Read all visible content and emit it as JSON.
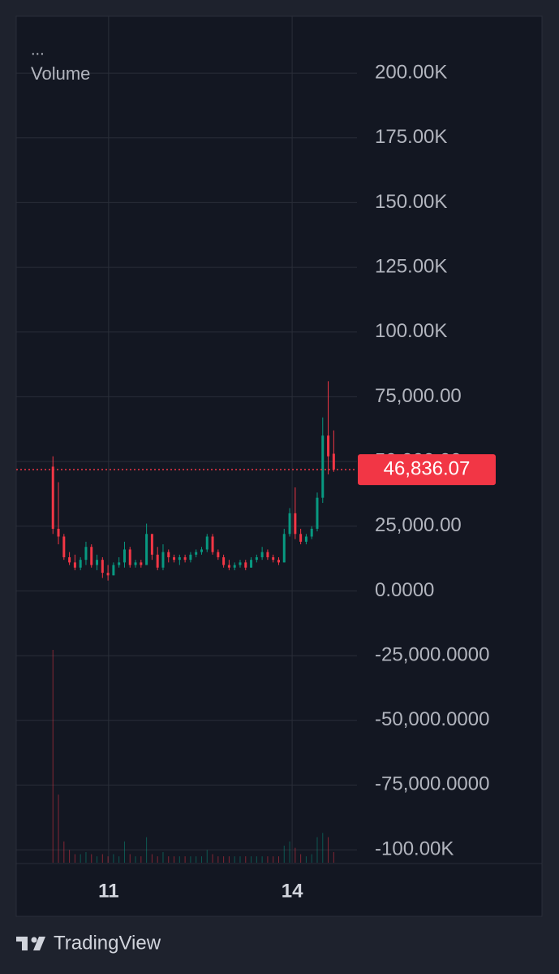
{
  "chart_data": {
    "type": "candlestick",
    "pane_menu": "...",
    "pane_title": "Volume",
    "x": [
      10.09,
      10.18,
      10.27,
      10.36,
      10.45,
      10.54,
      10.63,
      10.72,
      10.81,
      10.9,
      10.99,
      11.08,
      11.17,
      11.26,
      11.35,
      11.44,
      11.53,
      11.62,
      11.71,
      11.8,
      11.89,
      11.98,
      12.07,
      12.16,
      12.25,
      12.34,
      12.43,
      12.52,
      12.61,
      12.7,
      12.79,
      12.88,
      12.97,
      13.06,
      13.15,
      13.24,
      13.33,
      13.42,
      13.51,
      13.6,
      13.69,
      13.78,
      13.87,
      13.96,
      14.05,
      14.14,
      14.23,
      14.32,
      14.41,
      14.5,
      14.59,
      14.68
    ],
    "open": [
      48000,
      24000,
      21000,
      13000,
      11000,
      9000,
      12000,
      17000,
      10000,
      12000,
      7000,
      6000,
      10000,
      11000,
      16000,
      10000,
      11000,
      10000,
      22000,
      14000,
      9000,
      15000,
      13000,
      12000,
      13000,
      12000,
      14000,
      15000,
      16000,
      21000,
      15000,
      13000,
      10000,
      9000,
      10000,
      11000,
      9000,
      12000,
      13000,
      15000,
      13000,
      12000,
      11000,
      22000,
      30000,
      22000,
      19000,
      21000,
      24000,
      36000,
      60000,
      53000
    ],
    "high": [
      52000,
      42000,
      22000,
      15000,
      14000,
      13000,
      19000,
      18000,
      14000,
      13000,
      10000,
      11000,
      13000,
      19000,
      17000,
      12000,
      12000,
      26000,
      22000,
      17000,
      18000,
      16000,
      14000,
      14000,
      14000,
      15000,
      16000,
      17000,
      22000,
      22000,
      16000,
      14000,
      12000,
      11000,
      12000,
      12000,
      13000,
      14000,
      17000,
      16000,
      14000,
      13000,
      24000,
      32000,
      40000,
      24000,
      22000,
      25000,
      38000,
      67000,
      81000,
      62000
    ],
    "low": [
      22000,
      18000,
      12000,
      10000,
      8000,
      8000,
      10000,
      9000,
      8000,
      5000,
      4000,
      6000,
      9000,
      9000,
      9000,
      9000,
      9000,
      10000,
      12000,
      8000,
      8000,
      11000,
      11000,
      10000,
      11000,
      11000,
      13000,
      14000,
      15000,
      14000,
      12000,
      9000,
      8000,
      8000,
      9000,
      8000,
      9000,
      11000,
      12000,
      12000,
      11000,
      10000,
      11000,
      21000,
      20000,
      18000,
      18000,
      20000,
      23000,
      34000,
      45000,
      46000
    ],
    "close": [
      24000,
      21000,
      13000,
      11000,
      9000,
      12000,
      17000,
      10000,
      12000,
      7000,
      6000,
      10000,
      11000,
      16000,
      10000,
      11000,
      10000,
      22000,
      14000,
      9000,
      15000,
      13000,
      12000,
      13000,
      12000,
      14000,
      15000,
      16000,
      21000,
      15000,
      13000,
      10000,
      9000,
      10000,
      11000,
      9000,
      12000,
      13000,
      15000,
      13000,
      12000,
      11000,
      22000,
      30000,
      22000,
      19000,
      21000,
      24000,
      36000,
      60000,
      52000,
      46836.07
    ],
    "volume": [
      100,
      32,
      10,
      6,
      4,
      4,
      5,
      4,
      3,
      4,
      3,
      4,
      3,
      10,
      4,
      3,
      3,
      12,
      4,
      3,
      5,
      3,
      3,
      3,
      3,
      3,
      3,
      3,
      6,
      4,
      3,
      3,
      3,
      3,
      3,
      3,
      3,
      3,
      3,
      3,
      3,
      3,
      8,
      10,
      7,
      4,
      3,
      4,
      12,
      14,
      12,
      5
    ],
    "up_color": "#089981",
    "down_color": "#f23645",
    "last_price": {
      "value": 46836.07,
      "label": "46,836.07"
    },
    "xlim": [
      9.49,
      15.06
    ],
    "xticks": [
      11,
      14
    ],
    "ylim": [
      -105000,
      222000
    ],
    "yticks": [
      {
        "value": 200000,
        "label": "200.00K"
      },
      {
        "value": 175000,
        "label": "175.00K"
      },
      {
        "value": 150000,
        "label": "150.00K"
      },
      {
        "value": 125000,
        "label": "125.00K"
      },
      {
        "value": 100000,
        "label": "100.00K"
      },
      {
        "value": 75000,
        "label": "75,000.00"
      },
      {
        "value": 50000,
        "label": "50,000.00"
      },
      {
        "value": 25000,
        "label": "25,000.00"
      },
      {
        "value": 0,
        "label": "0.0000"
      },
      {
        "value": -25000,
        "label": "-25,000.0000"
      },
      {
        "value": -50000,
        "label": "-50,000.0000"
      },
      {
        "value": -75000,
        "label": "-75,000.0000"
      },
      {
        "value": -100000,
        "label": "-100.00K"
      }
    ],
    "grid": true
  },
  "branding": "TradingView"
}
